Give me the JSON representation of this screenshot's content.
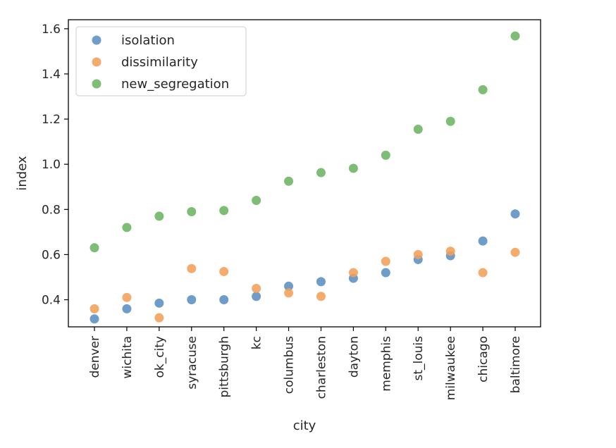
{
  "chart_data": {
    "type": "scatter",
    "title": "",
    "xlabel": "city",
    "ylabel": "index",
    "categories": [
      "denver",
      "wichita",
      "ok_city",
      "syracuse",
      "pittsburgh",
      "kc",
      "columbus",
      "charleston",
      "dayton",
      "memphis",
      "st_louis",
      "milwaukee",
      "chicago",
      "baltimore"
    ],
    "ylim": [
      0.28,
      1.64
    ],
    "yticks": [
      "0.4",
      "0.6",
      "0.8",
      "1.0",
      "1.2",
      "1.4",
      "1.6"
    ],
    "grid": false,
    "legend_position": "upper-left",
    "series": [
      {
        "name": "isolation",
        "color": "#5b8fc2",
        "values": [
          0.315,
          0.36,
          0.385,
          0.4,
          0.4,
          0.415,
          0.46,
          0.48,
          0.495,
          0.52,
          0.578,
          0.595,
          0.66,
          0.78
        ]
      },
      {
        "name": "dissimilarity",
        "color": "#f3a05a",
        "values": [
          0.36,
          0.41,
          0.32,
          0.538,
          0.525,
          0.45,
          0.43,
          0.415,
          0.52,
          0.57,
          0.6,
          0.615,
          0.52,
          0.61
        ]
      },
      {
        "name": "new_segregation",
        "color": "#6bb463",
        "values": [
          0.63,
          0.72,
          0.77,
          0.79,
          0.795,
          0.84,
          0.925,
          0.963,
          0.982,
          1.04,
          1.155,
          1.19,
          1.33,
          1.568
        ]
      }
    ]
  }
}
